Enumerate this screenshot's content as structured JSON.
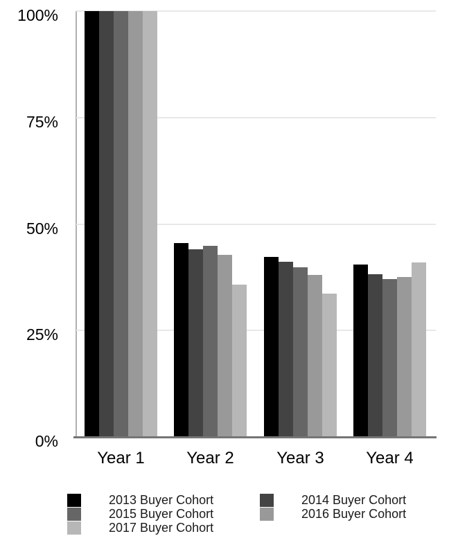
{
  "chart_data": {
    "type": "bar",
    "title": "",
    "xlabel": "",
    "ylabel": "",
    "ylim": [
      0,
      100
    ],
    "grid": true,
    "legend_position": "bottom",
    "legend_columns": 2,
    "categories": [
      "Year 1",
      "Year 2",
      "Year 3",
      "Year 4"
    ],
    "series": [
      {
        "name": "2013 Buyer Cohort",
        "color": "#000000",
        "values": [
          100,
          45.5,
          42.2,
          40.5
        ]
      },
      {
        "name": "2014 Buyer Cohort",
        "color": "#434343",
        "values": [
          100,
          44.1,
          41.2,
          38.2
        ]
      },
      {
        "name": "2015 Buyer Cohort",
        "color": "#666666",
        "values": [
          100,
          44.9,
          39.8,
          37.0
        ]
      },
      {
        "name": "2016 Buyer Cohort",
        "color": "#999999",
        "values": [
          100,
          42.8,
          38.1,
          37.6
        ]
      },
      {
        "name": "2017 Buyer Cohort",
        "color": "#b7b7b7",
        "values": [
          100,
          35.8,
          33.6,
          41.0
        ]
      }
    ],
    "yticks": [
      {
        "value": 100,
        "label": "100%"
      },
      {
        "value": 75,
        "label": "75%"
      },
      {
        "value": 50,
        "label": "50%"
      },
      {
        "value": 25,
        "label": "25%"
      },
      {
        "value": 0,
        "label": "0%"
      }
    ]
  },
  "palette": {
    "background": "#ffffff",
    "gridline": "#e8e8e8",
    "x_axis_line": "#757575",
    "y_axis_line": "#b0b0b0",
    "tick_text": "#000000",
    "legend_text": "#1a1a1a"
  }
}
